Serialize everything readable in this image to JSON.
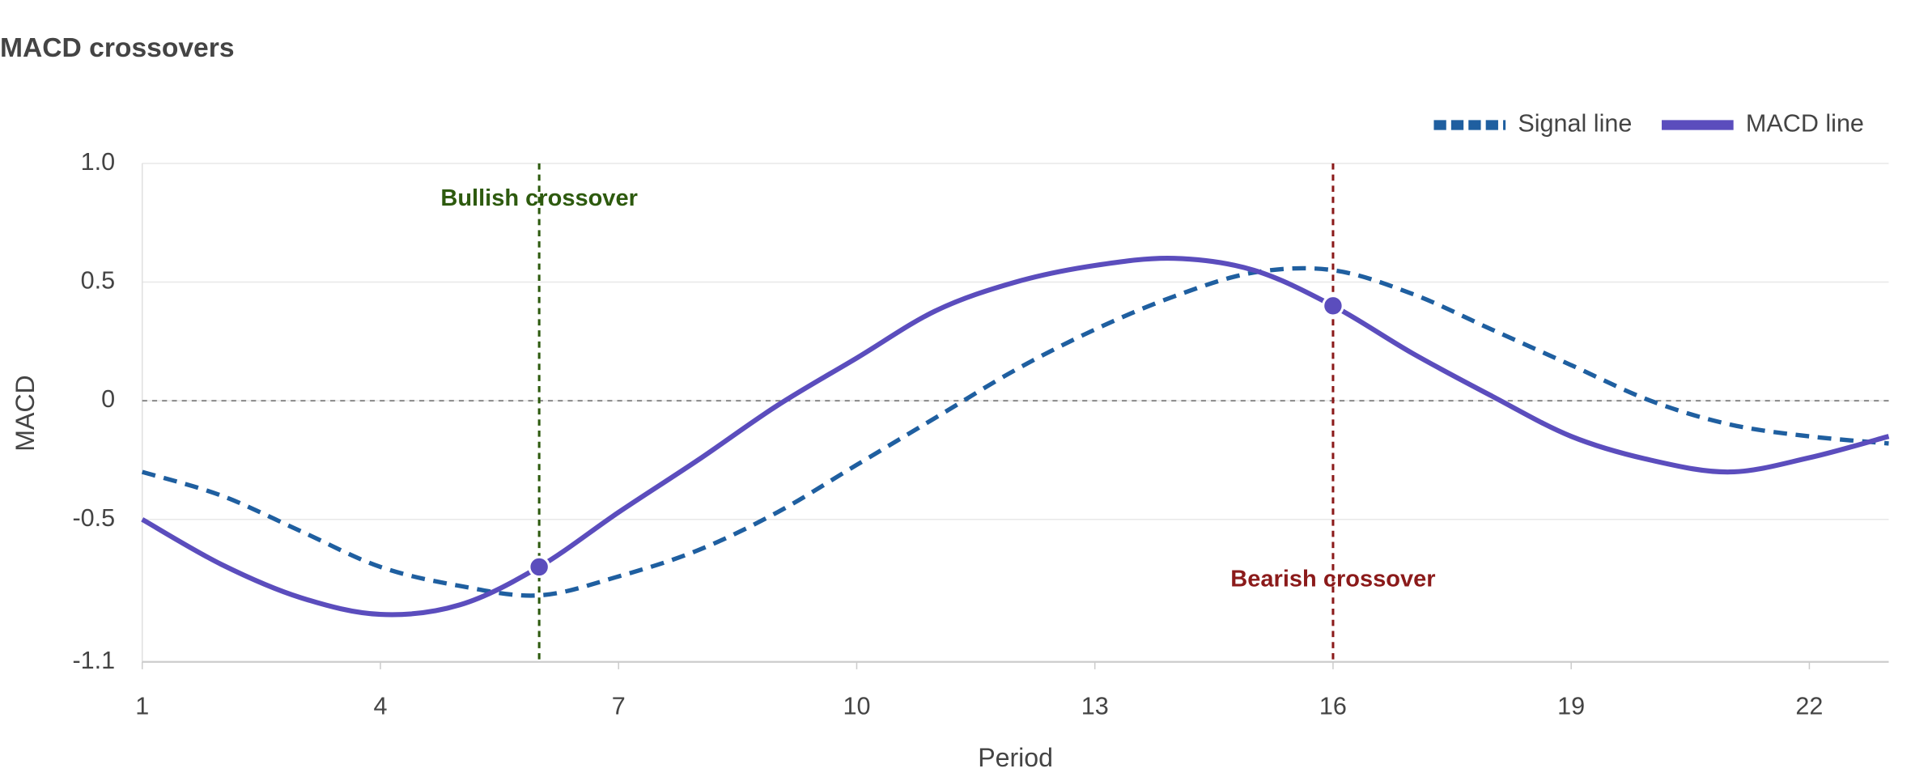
{
  "chart_data": {
    "type": "line",
    "title": "MACD crossovers",
    "xlabel": "Period",
    "ylabel": "MACD",
    "x": [
      1,
      2,
      3,
      4,
      5,
      6,
      7,
      8,
      9,
      10,
      11,
      12,
      13,
      14,
      15,
      16,
      17,
      18,
      19,
      20,
      21,
      22,
      23
    ],
    "series": [
      {
        "name": "Signal line",
        "color": "#1f5fa0",
        "dashed": true,
        "values": [
          -0.3,
          -0.4,
          -0.55,
          -0.7,
          -0.78,
          -0.82,
          -0.74,
          -0.63,
          -0.47,
          -0.27,
          -0.07,
          0.13,
          0.3,
          0.44,
          0.54,
          0.55,
          0.45,
          0.3,
          0.15,
          0.0,
          -0.1,
          -0.15,
          -0.18
        ]
      },
      {
        "name": "MACD line",
        "color": "#5b4dbd",
        "dashed": false,
        "values": [
          -0.5,
          -0.69,
          -0.83,
          -0.9,
          -0.86,
          -0.7,
          -0.47,
          -0.25,
          -0.02,
          0.18,
          0.38,
          0.5,
          0.57,
          0.6,
          0.55,
          0.4,
          0.2,
          0.02,
          -0.15,
          -0.25,
          -0.3,
          -0.24,
          -0.15
        ]
      }
    ],
    "annotations": [
      {
        "x": 6,
        "label": "Bullish crossover",
        "color": "#2d5a0e"
      },
      {
        "x": 16,
        "label": "Bearish crossover",
        "color": "#8b1a1a"
      }
    ],
    "xlim": [
      1,
      23
    ],
    "xticks": [
      1,
      4,
      7,
      10,
      13,
      16,
      19,
      22
    ],
    "ylim": [
      -1.1,
      1.0
    ],
    "yticks": [
      -1.1,
      -0.5,
      0,
      0.5,
      {
        "value": 1,
        "label": "1.0"
      }
    ],
    "grid": true,
    "legend": "top-right"
  }
}
